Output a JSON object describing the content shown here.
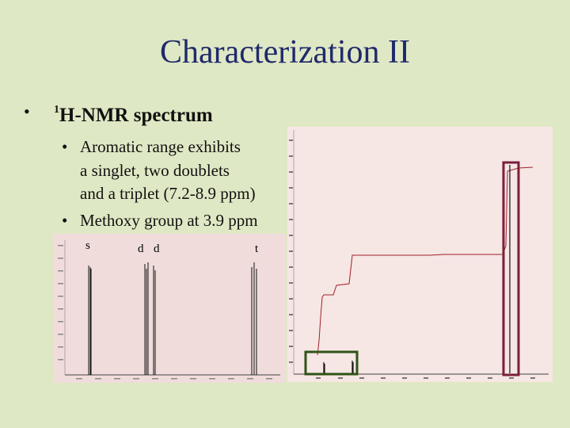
{
  "slide": {
    "title": "Characterization II",
    "bullet_mark": "•",
    "bullet1": {
      "sup": "1",
      "text": "H-NMR spectrum"
    },
    "sub_bullets": [
      {
        "mark": "•",
        "lines": [
          "Aromatic range exhibits",
          "a singlet, two doublets",
          "and a triplet (7.2-8.9 ppm)"
        ]
      },
      {
        "mark": "•",
        "lines": [
          "Methoxy group at 3.9 ppm"
        ]
      }
    ]
  },
  "zoom_spectrum": {
    "peak_labels": [
      "s",
      "d",
      "d",
      "t"
    ]
  },
  "colors": {
    "background": "#dfe8c4",
    "title": "#1f2a6b",
    "integration_curve": "#a0202a",
    "highlight_methoxy": "#7a1f3a",
    "highlight_aromatic": "#2f5416",
    "spectrum_bg": "#f1dcdc"
  }
}
